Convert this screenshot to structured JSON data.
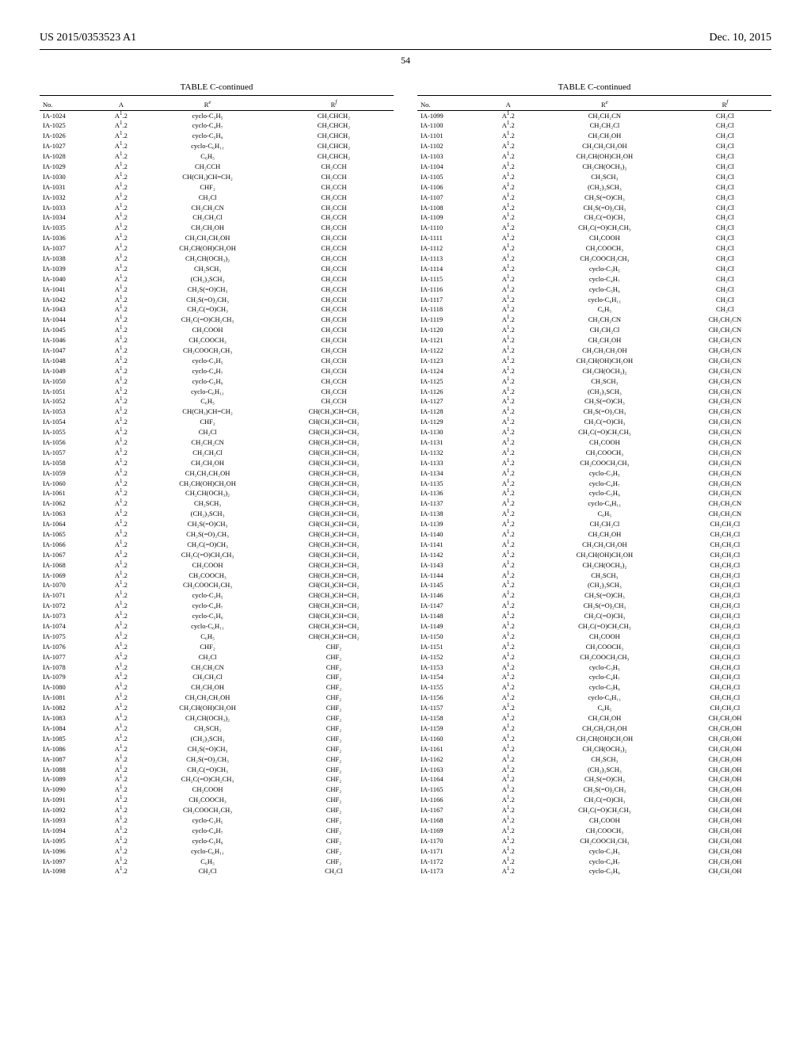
{
  "header": {
    "left": "US 2015/0353523 A1",
    "right": "Dec. 10, 2015"
  },
  "page_number": "54",
  "table_title": "TABLE C-continued",
  "columns": [
    "No.",
    "A",
    "Rᵉ",
    "Rᶠ"
  ],
  "left_rows": [
    [
      "IA-1024",
      "A¹.2",
      "cyclo-C₃H₅",
      "CH₂CHCH₂"
    ],
    [
      "IA-1025",
      "A¹.2",
      "cyclo-C₄H₇",
      "CH₂CHCH₂"
    ],
    [
      "IA-1026",
      "A¹.2",
      "cyclo-C₅H₉",
      "CH₂CHCH₂"
    ],
    [
      "IA-1027",
      "A¹.2",
      "cyclo-C₆H₁₁",
      "CH₂CHCH₂"
    ],
    [
      "IA-1028",
      "A¹.2",
      "C₆H₅",
      "CH₂CHCH₂"
    ],
    [
      "IA-1029",
      "A¹.2",
      "CH₂CCH",
      "CH₂CCH"
    ],
    [
      "IA-1030",
      "A¹.2",
      "CH(CH₃)CH=CH₂",
      "CH₂CCH"
    ],
    [
      "IA-1031",
      "A¹.2",
      "CHF₂",
      "CH₂CCH"
    ],
    [
      "IA-1032",
      "A¹.2",
      "CH₂Cl",
      "CH₂CCH"
    ],
    [
      "IA-1033",
      "A¹.2",
      "CH₂CH₂CN",
      "CH₂CCH"
    ],
    [
      "IA-1034",
      "A¹.2",
      "CH₂CH₂Cl",
      "CH₂CCH"
    ],
    [
      "IA-1035",
      "A¹.2",
      "CH₂CH₂OH",
      "CH₂CCH"
    ],
    [
      "IA-1036",
      "A¹.2",
      "CH₂CH₂CH₂OH",
      "CH₂CCH"
    ],
    [
      "IA-1037",
      "A¹.2",
      "CH₂CH(OH)CH₂OH",
      "CH₂CCH"
    ],
    [
      "IA-1038",
      "A¹.2",
      "CH₂CH(OCH₃)₂",
      "CH₂CCH"
    ],
    [
      "IA-1039",
      "A¹.2",
      "CH₂SCH₃",
      "CH₂CCH"
    ],
    [
      "IA-1040",
      "A¹.2",
      "(CH₂)₃SCH₃",
      "CH₂CCH"
    ],
    [
      "IA-1041",
      "A¹.2",
      "CH₂S(=O)CH₃",
      "CH₂CCH"
    ],
    [
      "IA-1042",
      "A¹.2",
      "CH₂S(=O)₂CH₃",
      "CH₂CCH"
    ],
    [
      "IA-1043",
      "A¹.2",
      "CH₂C(=O)CH₃",
      "CH₂CCH"
    ],
    [
      "IA-1044",
      "A¹.2",
      "CH₂C(=O)CH₂CH₃",
      "CH₂CCH"
    ],
    [
      "IA-1045",
      "A¹.2",
      "CH₂COOH",
      "CH₂CCH"
    ],
    [
      "IA-1046",
      "A¹.2",
      "CH₂COOCH₃",
      "CH₂CCH"
    ],
    [
      "IA-1047",
      "A¹.2",
      "CH₂COOCH₂CH₃",
      "CH₂CCH"
    ],
    [
      "IA-1048",
      "A¹.2",
      "cyclo-C₃H₅",
      "CH₂CCH"
    ],
    [
      "IA-1049",
      "A¹.2",
      "cyclo-C₄H₇",
      "CH₂CCH"
    ],
    [
      "IA-1050",
      "A¹.2",
      "cyclo-C₅H₉",
      "CH₂CCH"
    ],
    [
      "IA-1051",
      "A¹.2",
      "cyclo-C₆H₁₁",
      "CH₂CCH"
    ],
    [
      "IA-1052",
      "A¹.2",
      "C₆H₅",
      "CH₂CCH"
    ],
    [
      "IA-1053",
      "A¹.2",
      "CH(CH₃)CH=CH₂",
      "CH(CH₃)CH=CH₂"
    ],
    [
      "IA-1054",
      "A¹.2",
      "CHF₂",
      "CH(CH₃)CH=CH₂"
    ],
    [
      "IA-1055",
      "A¹.2",
      "CH₂Cl",
      "CH(CH₃)CH=CH₂"
    ],
    [
      "IA-1056",
      "A¹.2",
      "CH₂CH₂CN",
      "CH(CH₃)CH=CH₂"
    ],
    [
      "IA-1057",
      "A¹.2",
      "CH₂CH₂Cl",
      "CH(CH₃)CH=CH₂"
    ],
    [
      "IA-1058",
      "A¹.2",
      "CH₂CH₂OH",
      "CH(CH₃)CH=CH₂"
    ],
    [
      "IA-1059",
      "A¹.2",
      "CH₂CH₂CH₂OH",
      "CH(CH₃)CH=CH₂"
    ],
    [
      "IA-1060",
      "A¹.2",
      "CH₂CH(OH)CH₂OH",
      "CH(CH₃)CH=CH₂"
    ],
    [
      "IA-1061",
      "A¹.2",
      "CH₂CH(OCH₃)₂",
      "CH(CH₃)CH=CH₂"
    ],
    [
      "IA-1062",
      "A¹.2",
      "CH₂SCH₃",
      "CH(CH₃)CH=CH₂"
    ],
    [
      "IA-1063",
      "A¹.2",
      "(CH₂)₃SCH₃",
      "CH(CH₃)CH=CH₂"
    ],
    [
      "IA-1064",
      "A¹.2",
      "CH₂S(=O)CH₃",
      "CH(CH₃)CH=CH₂"
    ],
    [
      "IA-1065",
      "A¹.2",
      "CH₂S(=O)₂CH₃",
      "CH(CH₃)CH=CH₂"
    ],
    [
      "IA-1066",
      "A¹.2",
      "CH₂C(=O)CH₃",
      "CH(CH₃)CH=CH₂"
    ],
    [
      "IA-1067",
      "A¹.2",
      "CH₂C(=O)CH₂CH₃",
      "CH(CH₃)CH=CH₂"
    ],
    [
      "IA-1068",
      "A¹.2",
      "CH₂COOH",
      "CH(CH₃)CH=CH₂"
    ],
    [
      "IA-1069",
      "A¹.2",
      "CH₂COOCH₃",
      "CH(CH₃)CH=CH₂"
    ],
    [
      "IA-1070",
      "A¹.2",
      "CH₂COOCH₂CH₃",
      "CH(CH₃)CH=CH₂"
    ],
    [
      "IA-1071",
      "A¹.2",
      "cyclo-C₃H₅",
      "CH(CH₃)CH=CH₂"
    ],
    [
      "IA-1072",
      "A¹.2",
      "cyclo-C₄H₇",
      "CH(CH₃)CH=CH₂"
    ],
    [
      "IA-1073",
      "A¹.2",
      "cyclo-C₅H₉",
      "CH(CH₃)CH=CH₂"
    ],
    [
      "IA-1074",
      "A¹.2",
      "cyclo-C₆H₁₁",
      "CH(CH₃)CH=CH₂"
    ],
    [
      "IA-1075",
      "A¹.2",
      "C₆H₅",
      "CH(CH₃)CH=CH₂"
    ],
    [
      "IA-1076",
      "A¹.2",
      "CHF₂",
      "CHF₂"
    ],
    [
      "IA-1077",
      "A¹.2",
      "CH₂Cl",
      "CHF₂"
    ],
    [
      "IA-1078",
      "A¹.2",
      "CH₂CH₂CN",
      "CHF₂"
    ],
    [
      "IA-1079",
      "A¹.2",
      "CH₂CH₂Cl",
      "CHF₂"
    ],
    [
      "IA-1080",
      "A¹.2",
      "CH₂CH₂OH",
      "CHF₂"
    ],
    [
      "IA-1081",
      "A¹.2",
      "CH₂CH₂CH₂OH",
      "CHF₂"
    ],
    [
      "IA-1082",
      "A¹.2",
      "CH₂CH(OH)CH₂OH",
      "CHF₂"
    ],
    [
      "IA-1083",
      "A¹.2",
      "CH₂CH(OCH₃)₂",
      "CHF₂"
    ],
    [
      "IA-1084",
      "A¹.2",
      "CH₂SCH₃",
      "CHF₂"
    ],
    [
      "IA-1085",
      "A¹.2",
      "(CH₂)₃SCH₃",
      "CHF₂"
    ],
    [
      "IA-1086",
      "A¹.2",
      "CH₂S(=O)CH₃",
      "CHF₂"
    ],
    [
      "IA-1087",
      "A¹.2",
      "CH₂S(=O)₂CH₃",
      "CHF₂"
    ],
    [
      "IA-1088",
      "A¹.2",
      "CH₂C(=O)CH₃",
      "CHF₂"
    ],
    [
      "IA-1089",
      "A¹.2",
      "CH₂C(=O)CH₂CH₃",
      "CHF₂"
    ],
    [
      "IA-1090",
      "A¹.2",
      "CH₂COOH",
      "CHF₂"
    ],
    [
      "IA-1091",
      "A¹.2",
      "CH₂COOCH₃",
      "CHF₂"
    ],
    [
      "IA-1092",
      "A¹.2",
      "CH₂COOCH₂CH₃",
      "CHF₂"
    ],
    [
      "IA-1093",
      "A¹.2",
      "cyclo-C₃H₅",
      "CHF₂"
    ],
    [
      "IA-1094",
      "A¹.2",
      "cyclo-C₄H₇",
      "CHF₂"
    ],
    [
      "IA-1095",
      "A¹.2",
      "cyclo-C₅H₉",
      "CHF₂"
    ],
    [
      "IA-1096",
      "A¹.2",
      "cyclo-C₆H₁₁",
      "CHF₂"
    ],
    [
      "IA-1097",
      "A¹.2",
      "C₆H₅",
      "CHF₂"
    ],
    [
      "IA-1098",
      "A¹.2",
      "CH₂Cl",
      "CH₂Cl"
    ]
  ],
  "right_rows": [
    [
      "IA-1099",
      "A¹.2",
      "CH₂CH₂CN",
      "CH₂Cl"
    ],
    [
      "IA-1100",
      "A¹.2",
      "CH₂CH₂Cl",
      "CH₂Cl"
    ],
    [
      "IA-1101",
      "A¹.2",
      "CH₂CH₂OH",
      "CH₂Cl"
    ],
    [
      "IA-1102",
      "A¹.2",
      "CH₂CH₂CH₂OH",
      "CH₂Cl"
    ],
    [
      "IA-1103",
      "A¹.2",
      "CH₂CH(OH)CH₂OH",
      "CH₂Cl"
    ],
    [
      "IA-1104",
      "A¹.2",
      "CH₂CH(OCH₃)₂",
      "CH₂Cl"
    ],
    [
      "IA-1105",
      "A¹.2",
      "CH₂SCH₃",
      "CH₂Cl"
    ],
    [
      "IA-1106",
      "A¹.2",
      "(CH₂)₃SCH₃",
      "CH₂Cl"
    ],
    [
      "IA-1107",
      "A¹.2",
      "CH₂S(=O)CH₃",
      "CH₂Cl"
    ],
    [
      "IA-1108",
      "A¹.2",
      "CH₂S(=O)₂CH₃",
      "CH₂Cl"
    ],
    [
      "IA-1109",
      "A¹.2",
      "CH₂C(=O)CH₃",
      "CH₂Cl"
    ],
    [
      "IA-1110",
      "A¹.2",
      "CH₂C(=O)CH₂CH₃",
      "CH₂Cl"
    ],
    [
      "IA-1111",
      "A¹.2",
      "CH₂COOH",
      "CH₂Cl"
    ],
    [
      "IA-1112",
      "A¹.2",
      "CH₂COOCH₃",
      "CH₂Cl"
    ],
    [
      "IA-1113",
      "A¹.2",
      "CH₂COOCH₂CH₃",
      "CH₂Cl"
    ],
    [
      "IA-1114",
      "A¹.2",
      "cyclo-C₃H₅",
      "CH₂Cl"
    ],
    [
      "IA-1115",
      "A¹.2",
      "cyclo-C₄H₇",
      "CH₂Cl"
    ],
    [
      "IA-1116",
      "A¹.2",
      "cyclo-C₅H₉",
      "CH₂Cl"
    ],
    [
      "IA-1117",
      "A¹.2",
      "cyclo-C₆H₁₁",
      "CH₂Cl"
    ],
    [
      "IA-1118",
      "A¹.2",
      "C₆H₅",
      "CH₂Cl"
    ],
    [
      "IA-1119",
      "A¹.2",
      "CH₂CH₂CN",
      "CH₂CH₂CN"
    ],
    [
      "IA-1120",
      "A¹.2",
      "CH₂CH₂Cl",
      "CH₂CH₂CN"
    ],
    [
      "IA-1121",
      "A¹.2",
      "CH₂CH₂OH",
      "CH₂CH₂CN"
    ],
    [
      "IA-1122",
      "A¹.2",
      "CH₂CH₂CH₂OH",
      "CH₂CH₂CN"
    ],
    [
      "IA-1123",
      "A¹.2",
      "CH₂CH(OH)CH₂OH",
      "CH₂CH₂CN"
    ],
    [
      "IA-1124",
      "A¹.2",
      "CH₂CH(OCH₃)₂",
      "CH₂CH₂CN"
    ],
    [
      "IA-1125",
      "A¹.2",
      "CH₂SCH₃",
      "CH₂CH₂CN"
    ],
    [
      "IA-1126",
      "A¹.2",
      "(CH₂)₃SCH₃",
      "CH₂CH₂CN"
    ],
    [
      "IA-1127",
      "A¹.2",
      "CH₂S(=O)CH₃",
      "CH₂CH₂CN"
    ],
    [
      "IA-1128",
      "A¹.2",
      "CH₂S(=O)₂CH₃",
      "CH₂CH₂CN"
    ],
    [
      "IA-1129",
      "A¹.2",
      "CH₂C(=O)CH₃",
      "CH₂CH₂CN"
    ],
    [
      "IA-1130",
      "A¹.2",
      "CH₂C(=O)CH₂CH₃",
      "CH₂CH₂CN"
    ],
    [
      "IA-1131",
      "A¹.2",
      "CH₂COOH",
      "CH₂CH₂CN"
    ],
    [
      "IA-1132",
      "A¹.2",
      "CH₂COOCH₃",
      "CH₂CH₂CN"
    ],
    [
      "IA-1133",
      "A¹.2",
      "CH₂COOCH₂CH₃",
      "CH₂CH₂CN"
    ],
    [
      "IA-1134",
      "A¹.2",
      "cyclo-C₃H₅",
      "CH₂CH₂CN"
    ],
    [
      "IA-1135",
      "A¹.2",
      "cyclo-C₄H₇",
      "CH₂CH₂CN"
    ],
    [
      "IA-1136",
      "A¹.2",
      "cyclo-C₅H₉",
      "CH₂CH₂CN"
    ],
    [
      "IA-1137",
      "A¹.2",
      "cyclo-C₆H₁₁",
      "CH₂CH₂CN"
    ],
    [
      "IA-1138",
      "A¹.2",
      "C₆H₅",
      "CH₂CH₂CN"
    ],
    [
      "IA-1139",
      "A¹.2",
      "CH₂CH₂Cl",
      "CH₂CH₂Cl"
    ],
    [
      "IA-1140",
      "A¹.2",
      "CH₂CH₂OH",
      "CH₂CH₂Cl"
    ],
    [
      "IA-1141",
      "A¹.2",
      "CH₂CH₂CH₂OH",
      "CH₂CH₂Cl"
    ],
    [
      "IA-1142",
      "A¹.2",
      "CH₂CH(OH)CH₂OH",
      "CH₂CH₂Cl"
    ],
    [
      "IA-1143",
      "A¹.2",
      "CH₂CH(OCH₃)₂",
      "CH₂CH₂Cl"
    ],
    [
      "IA-1144",
      "A¹.2",
      "CH₂SCH₃",
      "CH₂CH₂Cl"
    ],
    [
      "IA-1145",
      "A¹.2",
      "(CH₂)₃SCH₃",
      "CH₂CH₂Cl"
    ],
    [
      "IA-1146",
      "A¹.2",
      "CH₂S(=O)CH₃",
      "CH₂CH₂Cl"
    ],
    [
      "IA-1147",
      "A¹.2",
      "CH₂S(=O)₂CH₃",
      "CH₂CH₂Cl"
    ],
    [
      "IA-1148",
      "A¹.2",
      "CH₂C(=O)CH₃",
      "CH₂CH₂Cl"
    ],
    [
      "IA-1149",
      "A¹.2",
      "CH₂C(=O)CH₂CH₃",
      "CH₂CH₂Cl"
    ],
    [
      "IA-1150",
      "A¹.2",
      "CH₂COOH",
      "CH₂CH₂Cl"
    ],
    [
      "IA-1151",
      "A¹.2",
      "CH₂COOCH₃",
      "CH₂CH₂Cl"
    ],
    [
      "IA-1152",
      "A¹.2",
      "CH₂COOCH₂CH₃",
      "CH₂CH₂Cl"
    ],
    [
      "IA-1153",
      "A¹.2",
      "cyclo-C₃H₅",
      "CH₂CH₂Cl"
    ],
    [
      "IA-1154",
      "A¹.2",
      "cyclo-C₄H₇",
      "CH₂CH₂Cl"
    ],
    [
      "IA-1155",
      "A¹.2",
      "cyclo-C₅H₉",
      "CH₂CH₂Cl"
    ],
    [
      "IA-1156",
      "A¹.2",
      "cyclo-C₆H₁₁",
      "CH₂CH₂Cl"
    ],
    [
      "IA-1157",
      "A¹.2",
      "C₆H₅",
      "CH₂CH₂Cl"
    ],
    [
      "IA-1158",
      "A¹.2",
      "CH₂CH₂OH",
      "CH₂CH₂OH"
    ],
    [
      "IA-1159",
      "A¹.2",
      "CH₂CH₂CH₂OH",
      "CH₂CH₂OH"
    ],
    [
      "IA-1160",
      "A¹.2",
      "CH₂CH(OH)CH₂OH",
      "CH₂CH₂OH"
    ],
    [
      "IA-1161",
      "A¹.2",
      "CH₂CH(OCH₃)₂",
      "CH₂CH₂OH"
    ],
    [
      "IA-1162",
      "A¹.2",
      "CH₂SCH₃",
      "CH₂CH₂OH"
    ],
    [
      "IA-1163",
      "A¹.2",
      "(CH₂)₃SCH₃",
      "CH₂CH₂OH"
    ],
    [
      "IA-1164",
      "A¹.2",
      "CH₂S(=O)CH₃",
      "CH₂CH₂OH"
    ],
    [
      "IA-1165",
      "A¹.2",
      "CH₂S(=O)₂CH₃",
      "CH₂CH₂OH"
    ],
    [
      "IA-1166",
      "A¹.2",
      "CH₂C(=O)CH₃",
      "CH₂CH₂OH"
    ],
    [
      "IA-1167",
      "A¹.2",
      "CH₂C(=O)CH₂CH₃",
      "CH₂CH₂OH"
    ],
    [
      "IA-1168",
      "A¹.2",
      "CH₂COOH",
      "CH₂CH₂OH"
    ],
    [
      "IA-1169",
      "A¹.2",
      "CH₂COOCH₃",
      "CH₂CH₂OH"
    ],
    [
      "IA-1170",
      "A¹.2",
      "CH₂COOCH₂CH₃",
      "CH₂CH₂OH"
    ],
    [
      "IA-1171",
      "A¹.2",
      "cyclo-C₃H₅",
      "CH₂CH₂OH"
    ],
    [
      "IA-1172",
      "A¹.2",
      "cyclo-C₄H₇",
      "CH₂CH₂OH"
    ],
    [
      "IA-1173",
      "A¹.2",
      "cyclo-C₅H₉",
      "CH₂CH₂OH"
    ]
  ]
}
